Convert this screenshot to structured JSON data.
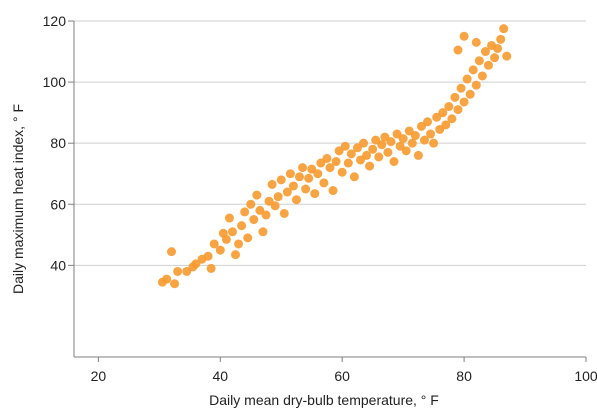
{
  "chart_data": {
    "type": "scatter",
    "title": "",
    "xlabel": "Daily mean dry-bulb temperature, ° F",
    "ylabel": "Daily maximum heat index, ° F",
    "xlim": [
      16,
      100
    ],
    "ylim": [
      10,
      120
    ],
    "x_ticks": [
      20,
      40,
      60,
      80,
      100
    ],
    "y_ticks": [
      40,
      60,
      80,
      100,
      120
    ],
    "grid": "horizontal",
    "legend": "none",
    "marker_color": "#F79A2E",
    "points_note": "representative sampled points (dense scatter of many days)",
    "series": [
      {
        "points": [
          [
            30.5,
            34.5
          ],
          [
            31.2,
            35.5
          ],
          [
            32.0,
            44.5
          ],
          [
            32.5,
            34.0
          ],
          [
            33.0,
            38.0
          ],
          [
            34.5,
            38.0
          ],
          [
            35.5,
            39.5
          ],
          [
            36.0,
            40.5
          ],
          [
            37.0,
            42.0
          ],
          [
            38.0,
            43.0
          ],
          [
            38.5,
            39.0
          ],
          [
            39.0,
            47.0
          ],
          [
            40.0,
            45.0
          ],
          [
            40.5,
            50.5
          ],
          [
            41.0,
            48.5
          ],
          [
            41.5,
            55.5
          ],
          [
            42.0,
            51.0
          ],
          [
            42.5,
            43.5
          ],
          [
            43.0,
            47.0
          ],
          [
            43.5,
            53.0
          ],
          [
            44.0,
            57.5
          ],
          [
            44.5,
            49.0
          ],
          [
            45.0,
            60.0
          ],
          [
            45.5,
            55.0
          ],
          [
            46.0,
            63.0
          ],
          [
            46.5,
            58.0
          ],
          [
            47.0,
            51.0
          ],
          [
            47.5,
            56.5
          ],
          [
            48.0,
            61.0
          ],
          [
            48.5,
            66.5
          ],
          [
            49.0,
            59.5
          ],
          [
            49.5,
            62.5
          ],
          [
            50.0,
            68.0
          ],
          [
            50.5,
            57.0
          ],
          [
            51.0,
            64.0
          ],
          [
            51.5,
            70.0
          ],
          [
            52.0,
            66.0
          ],
          [
            52.5,
            61.5
          ],
          [
            53.0,
            69.0
          ],
          [
            53.5,
            72.0
          ],
          [
            54.0,
            65.0
          ],
          [
            54.5,
            68.5
          ],
          [
            55.0,
            71.5
          ],
          [
            55.5,
            63.5
          ],
          [
            56.0,
            70.0
          ],
          [
            56.5,
            73.5
          ],
          [
            57.0,
            67.0
          ],
          [
            57.5,
            75.0
          ],
          [
            58.0,
            72.0
          ],
          [
            58.5,
            64.5
          ],
          [
            59.0,
            74.0
          ],
          [
            59.5,
            77.5
          ],
          [
            60.0,
            70.5
          ],
          [
            60.5,
            79.0
          ],
          [
            61.0,
            73.5
          ],
          [
            61.5,
            76.5
          ],
          [
            62.0,
            69.0
          ],
          [
            62.5,
            78.5
          ],
          [
            63.0,
            74.5
          ],
          [
            63.5,
            80.0
          ],
          [
            64.0,
            76.0
          ],
          [
            64.5,
            72.5
          ],
          [
            65.0,
            78.0
          ],
          [
            65.5,
            81.0
          ],
          [
            66.0,
            75.5
          ],
          [
            66.5,
            79.5
          ],
          [
            67.0,
            82.0
          ],
          [
            67.5,
            77.0
          ],
          [
            68.0,
            80.5
          ],
          [
            68.5,
            74.0
          ],
          [
            69.0,
            83.0
          ],
          [
            69.5,
            79.0
          ],
          [
            70.0,
            81.5
          ],
          [
            70.5,
            77.5
          ],
          [
            71.0,
            84.0
          ],
          [
            71.5,
            80.0
          ],
          [
            72.0,
            82.5
          ],
          [
            72.5,
            76.0
          ],
          [
            73.0,
            85.5
          ],
          [
            73.5,
            81.0
          ],
          [
            74.0,
            87.0
          ],
          [
            74.5,
            83.0
          ],
          [
            75.0,
            80.0
          ],
          [
            75.5,
            88.5
          ],
          [
            76.0,
            84.5
          ],
          [
            76.5,
            90.0
          ],
          [
            77.0,
            86.0
          ],
          [
            77.5,
            92.0
          ],
          [
            78.0,
            88.0
          ],
          [
            78.5,
            95.0
          ],
          [
            79.0,
            91.0
          ],
          [
            79.5,
            98.0
          ],
          [
            80.0,
            93.5
          ],
          [
            80.5,
            101.0
          ],
          [
            81.0,
            96.0
          ],
          [
            81.5,
            104.0
          ],
          [
            82.0,
            99.0
          ],
          [
            82.5,
            107.0
          ],
          [
            83.0,
            102.0
          ],
          [
            83.5,
            110.0
          ],
          [
            84.0,
            105.5
          ],
          [
            84.5,
            112.0
          ],
          [
            85.0,
            108.0
          ],
          [
            85.5,
            111.0
          ],
          [
            86.0,
            114.0
          ],
          [
            86.5,
            117.5
          ],
          [
            87.0,
            108.5
          ],
          [
            80.0,
            115.0
          ],
          [
            82.0,
            113.0
          ],
          [
            79.0,
            110.5
          ]
        ]
      }
    ]
  }
}
